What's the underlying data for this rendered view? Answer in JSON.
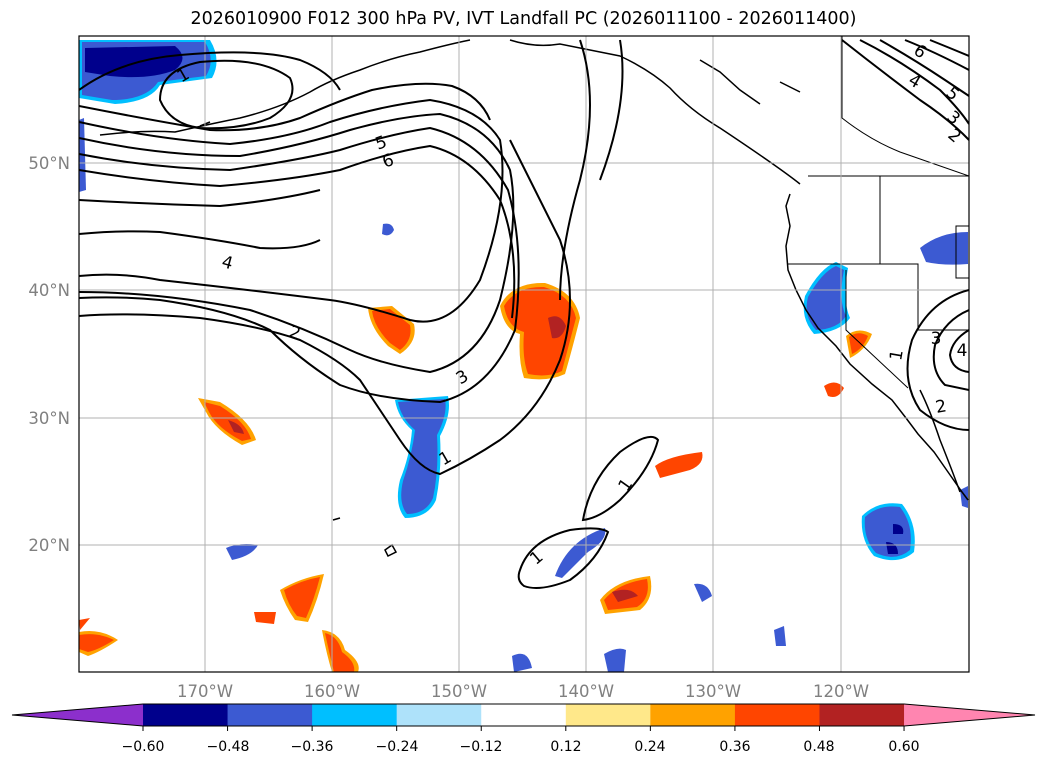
{
  "title": "2026010900 F012 300 hPa PV, IVT Landfall PC (2026011100 - 2026011400)",
  "map": {
    "lat_labels": [
      "50°N",
      "40°N",
      "30°N",
      "20°N"
    ],
    "lon_labels": [
      "170°W",
      "160°W",
      "150°W",
      "140°W",
      "130°W",
      "120°W"
    ]
  },
  "contour_labels": [
    "1",
    "2",
    "3",
    "4",
    "5",
    "6",
    "1",
    "1",
    "1",
    "2",
    "3",
    "4",
    "1",
    "4",
    "5",
    "6",
    "3",
    "2"
  ],
  "colorbar": {
    "tick_labels": [
      "−0.60",
      "−0.48",
      "−0.36",
      "−0.24",
      "−0.12",
      "0.12",
      "0.24",
      "0.36",
      "0.48",
      "0.60"
    ],
    "colors": [
      "#8c2fcc",
      "#00008c",
      "#3c5ad2",
      "#00bfff",
      "#aee2fa",
      "#ffffff",
      "#ffe88a",
      "#ffa200",
      "#ff4500",
      "#b22222",
      "#ff85b0"
    ]
  }
}
